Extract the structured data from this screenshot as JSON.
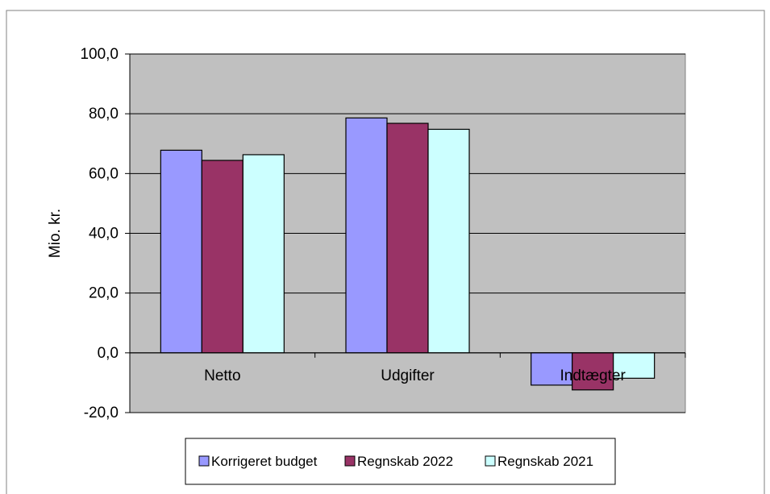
{
  "chart_data": {
    "type": "bar",
    "title": "",
    "xlabel": "",
    "ylabel": "Mio. kr.",
    "ylim": [
      -20,
      100
    ],
    "ytick_values": [
      -20,
      0,
      20,
      40,
      60,
      80,
      100
    ],
    "ytick_labels": [
      "-20,0",
      "0,0",
      "20,0",
      "40,0",
      "60,0",
      "80,0",
      "100,0"
    ],
    "categories": [
      "Netto",
      "Udgifter",
      "Indtægter"
    ],
    "series": [
      {
        "name": "Korrigeret budget",
        "color": "#9999ff",
        "values": [
          67.8,
          78.6,
          -10.8
        ]
      },
      {
        "name": "Regnskab 2022",
        "color": "#993366",
        "values": [
          64.4,
          76.8,
          -12.4
        ]
      },
      {
        "name": "Regnskab 2021",
        "color": "#ccffff",
        "values": [
          66.3,
          74.8,
          -8.5
        ]
      }
    ],
    "grid": true,
    "legend_position": "bottom",
    "plot_background": "#c0c0c0"
  }
}
